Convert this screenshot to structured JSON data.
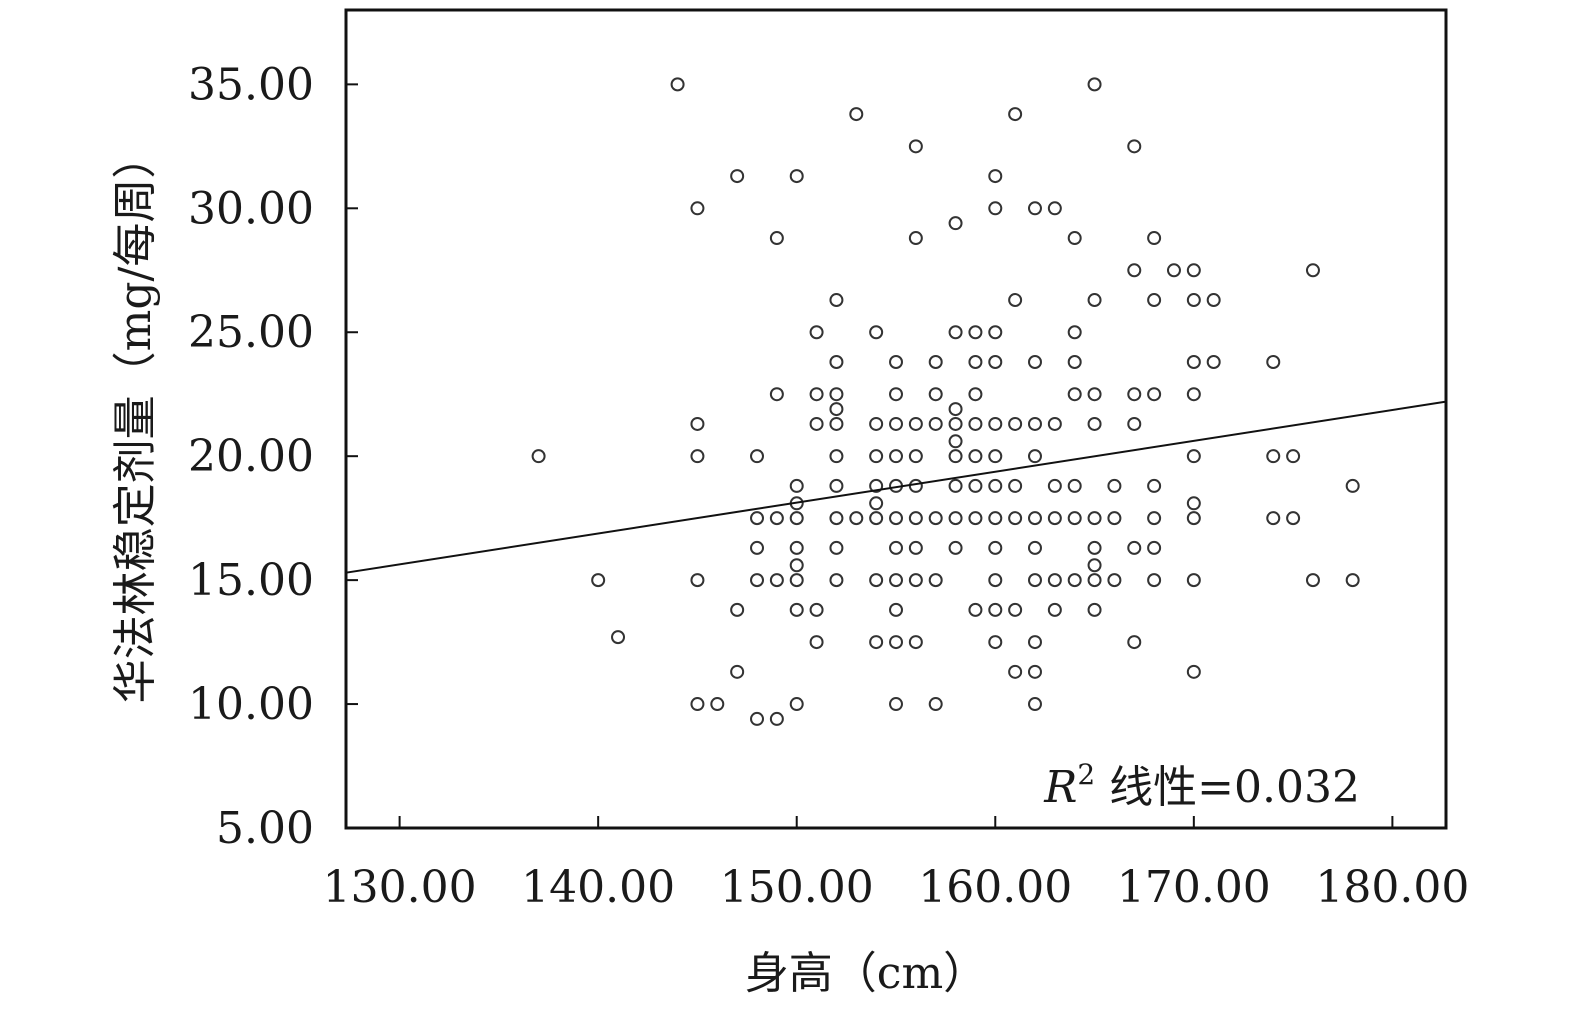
{
  "chart_data": {
    "type": "scatter",
    "xlabel": "身高（cm）",
    "ylabel": "华法林稳定剂量（mg/每周）",
    "xlim": [
      127.3,
      182.7
    ],
    "ylim": [
      5.0,
      38.0
    ],
    "x_ticks": [
      "130.00",
      "140.00",
      "150.00",
      "160.00",
      "170.00",
      "180.00"
    ],
    "y_ticks": [
      "5.00",
      "10.00",
      "15.00",
      "20.00",
      "25.00",
      "30.00",
      "35.00"
    ],
    "x_tick_values": [
      130,
      140,
      150,
      160,
      170,
      180
    ],
    "y_tick_values": [
      5,
      10,
      15,
      20,
      25,
      30,
      35
    ],
    "grid": false,
    "marker": "open-circle",
    "fit_line": {
      "type": "linear",
      "x": [
        127.3,
        182.7
      ],
      "y": [
        15.3,
        22.2
      ]
    },
    "annotation": {
      "symbol": "R",
      "superscript": "2",
      "text": "线性=0.032"
    },
    "points": [
      [
        137,
        20
      ],
      [
        140,
        15
      ],
      [
        141,
        12.7
      ],
      [
        144,
        35
      ],
      [
        145,
        30
      ],
      [
        145,
        21.3
      ],
      [
        145,
        20
      ],
      [
        145,
        15
      ],
      [
        145,
        10
      ],
      [
        146,
        10
      ],
      [
        147,
        31.3
      ],
      [
        147,
        13.8
      ],
      [
        147,
        11.3
      ],
      [
        148,
        20
      ],
      [
        148,
        17.5
      ],
      [
        148,
        16.3
      ],
      [
        148,
        15
      ],
      [
        148,
        9.4
      ],
      [
        149,
        28.8
      ],
      [
        149,
        22.5
      ],
      [
        149,
        17.5
      ],
      [
        149,
        15
      ],
      [
        149,
        9.4
      ],
      [
        150,
        31.3
      ],
      [
        150,
        18.8
      ],
      [
        150,
        18.1
      ],
      [
        150,
        17.5
      ],
      [
        150,
        16.3
      ],
      [
        150,
        15.6
      ],
      [
        150,
        15
      ],
      [
        150,
        13.8
      ],
      [
        150,
        10
      ],
      [
        151,
        25
      ],
      [
        151,
        22.5
      ],
      [
        151,
        21.3
      ],
      [
        151,
        13.8
      ],
      [
        151,
        12.5
      ],
      [
        152,
        26.3
      ],
      [
        152,
        23.8
      ],
      [
        152,
        22.5
      ],
      [
        152,
        21.9
      ],
      [
        152,
        21.3
      ],
      [
        152,
        20
      ],
      [
        152,
        18.8
      ],
      [
        152,
        17.5
      ],
      [
        152,
        16.3
      ],
      [
        152,
        15
      ],
      [
        153,
        33.8
      ],
      [
        153,
        17.5
      ],
      [
        154,
        25
      ],
      [
        154,
        21.3
      ],
      [
        154,
        20
      ],
      [
        154,
        18.8
      ],
      [
        154,
        18.1
      ],
      [
        154,
        17.5
      ],
      [
        154,
        15
      ],
      [
        154,
        12.5
      ],
      [
        155,
        23.8
      ],
      [
        155,
        22.5
      ],
      [
        155,
        21.3
      ],
      [
        155,
        20
      ],
      [
        155,
        18.8
      ],
      [
        155,
        17.5
      ],
      [
        155,
        16.3
      ],
      [
        155,
        15
      ],
      [
        155,
        13.8
      ],
      [
        155,
        12.5
      ],
      [
        155,
        10
      ],
      [
        156,
        32.5
      ],
      [
        156,
        28.8
      ],
      [
        156,
        21.3
      ],
      [
        156,
        20
      ],
      [
        156,
        18.8
      ],
      [
        156,
        17.5
      ],
      [
        156,
        16.3
      ],
      [
        156,
        15
      ],
      [
        156,
        12.5
      ],
      [
        157,
        23.8
      ],
      [
        157,
        22.5
      ],
      [
        157,
        21.3
      ],
      [
        157,
        17.5
      ],
      [
        157,
        15
      ],
      [
        157,
        10
      ],
      [
        158,
        29.4
      ],
      [
        158,
        25
      ],
      [
        158,
        21.9
      ],
      [
        158,
        21.3
      ],
      [
        158,
        20.6
      ],
      [
        158,
        20
      ],
      [
        158,
        18.8
      ],
      [
        158,
        17.5
      ],
      [
        158,
        16.3
      ],
      [
        159,
        25
      ],
      [
        159,
        23.8
      ],
      [
        159,
        22.5
      ],
      [
        159,
        21.3
      ],
      [
        159,
        20
      ],
      [
        159,
        18.8
      ],
      [
        159,
        17.5
      ],
      [
        159,
        13.8
      ],
      [
        160,
        31.3
      ],
      [
        160,
        30
      ],
      [
        160,
        25
      ],
      [
        160,
        23.8
      ],
      [
        160,
        21.3
      ],
      [
        160,
        20
      ],
      [
        160,
        18.8
      ],
      [
        160,
        17.5
      ],
      [
        160,
        16.3
      ],
      [
        160,
        15
      ],
      [
        160,
        13.8
      ],
      [
        160,
        12.5
      ],
      [
        161,
        33.8
      ],
      [
        161,
        26.3
      ],
      [
        161,
        21.3
      ],
      [
        161,
        18.8
      ],
      [
        161,
        17.5
      ],
      [
        161,
        13.8
      ],
      [
        161,
        11.3
      ],
      [
        162,
        30
      ],
      [
        162,
        23.8
      ],
      [
        162,
        21.3
      ],
      [
        162,
        20
      ],
      [
        162,
        17.5
      ],
      [
        162,
        16.3
      ],
      [
        162,
        15
      ],
      [
        162,
        12.5
      ],
      [
        162,
        11.3
      ],
      [
        162,
        10
      ],
      [
        163,
        30
      ],
      [
        163,
        21.3
      ],
      [
        163,
        18.8
      ],
      [
        163,
        17.5
      ],
      [
        163,
        15
      ],
      [
        163,
        13.8
      ],
      [
        164,
        28.8
      ],
      [
        164,
        25
      ],
      [
        164,
        23.8
      ],
      [
        164,
        22.5
      ],
      [
        164,
        18.8
      ],
      [
        164,
        17.5
      ],
      [
        164,
        15
      ],
      [
        165,
        35
      ],
      [
        165,
        26.3
      ],
      [
        165,
        22.5
      ],
      [
        165,
        21.3
      ],
      [
        165,
        17.5
      ],
      [
        165,
        16.3
      ],
      [
        165,
        15.6
      ],
      [
        165,
        15
      ],
      [
        165,
        13.8
      ],
      [
        166,
        18.8
      ],
      [
        166,
        17.5
      ],
      [
        166,
        15
      ],
      [
        167,
        32.5
      ],
      [
        167,
        27.5
      ],
      [
        167,
        22.5
      ],
      [
        167,
        21.3
      ],
      [
        167,
        16.3
      ],
      [
        167,
        12.5
      ],
      [
        168,
        28.8
      ],
      [
        168,
        26.3
      ],
      [
        168,
        22.5
      ],
      [
        168,
        18.8
      ],
      [
        168,
        17.5
      ],
      [
        168,
        16.3
      ],
      [
        168,
        15
      ],
      [
        169,
        27.5
      ],
      [
        170,
        27.5
      ],
      [
        170,
        26.3
      ],
      [
        170,
        23.8
      ],
      [
        170,
        22.5
      ],
      [
        170,
        20
      ],
      [
        170,
        18.1
      ],
      [
        170,
        17.5
      ],
      [
        170,
        15
      ],
      [
        170,
        11.3
      ],
      [
        171,
        26.3
      ],
      [
        171,
        23.8
      ],
      [
        174,
        23.8
      ],
      [
        174,
        20
      ],
      [
        174,
        17.5
      ],
      [
        175,
        20
      ],
      [
        175,
        17.5
      ],
      [
        176,
        27.5
      ],
      [
        176,
        15
      ],
      [
        178,
        18.8
      ],
      [
        178,
        15
      ]
    ]
  }
}
